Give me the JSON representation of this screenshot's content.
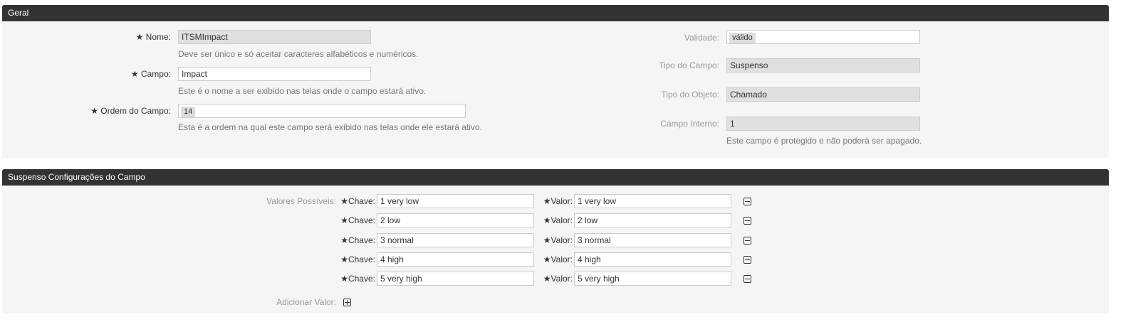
{
  "general": {
    "title": "Geral",
    "name": {
      "label": "Nome:",
      "value": "ITSMImpact",
      "help": "Deve ser único e só aceitar caracteres alfabéticos e numéricos."
    },
    "field": {
      "label": "Campo:",
      "value": "Impact",
      "help": "Este é o nome a ser exibido nas telas onde o campo estará ativo."
    },
    "order": {
      "label": "Ordem do Campo:",
      "value": "14",
      "help": "Esta é a ordem na qual este campo será exibido nas telas onde ele estará ativo."
    },
    "validity": {
      "label": "Validade:",
      "value": "válido"
    },
    "field_type": {
      "label": "Tipo do Campo:",
      "value": "Suspenso"
    },
    "object_type": {
      "label": "Tipo do Objeto:",
      "value": "Chamado"
    },
    "internal": {
      "label": "Campo Interno:",
      "value": "1",
      "help": "Este campo é protegido e não poderá ser apagado."
    }
  },
  "settings": {
    "title": "Suspenso Configurações do Campo",
    "possible_values_label": "Valores Possíveis:",
    "key_label": "Chave:",
    "value_label": "Valor:",
    "rows": [
      {
        "key": "1 very low",
        "value": "1 very low"
      },
      {
        "key": "2 low",
        "value": "2 low"
      },
      {
        "key": "3 normal",
        "value": "3 normal"
      },
      {
        "key": "4 high",
        "value": "4 high"
      },
      {
        "key": "5 very high",
        "value": "5 very high"
      }
    ],
    "add_value_label": "Adicionar Valor:"
  }
}
